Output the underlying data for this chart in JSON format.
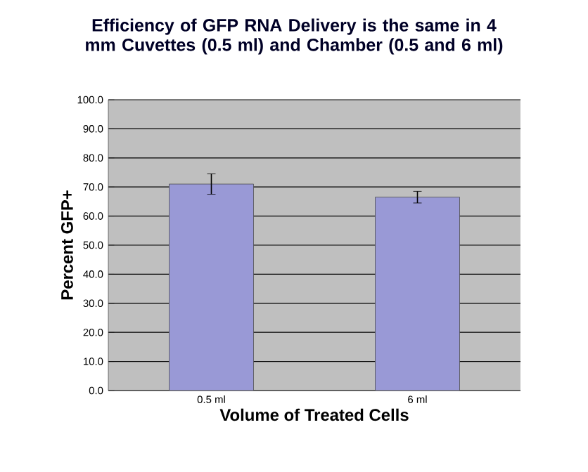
{
  "chart_data": {
    "type": "bar",
    "title": "Efficiency of GFP RNA Delivery is the same in 4 mm Cuvettes (0.5 ml) and Chamber (0.5 and 6 ml)",
    "xlabel": "Volume of Treated Cells",
    "ylabel": "Percent GFP+",
    "categories": [
      "0.5 ml",
      "6 ml"
    ],
    "values": [
      71.0,
      66.5
    ],
    "errors": [
      3.5,
      2.0
    ],
    "color": "#9999d6",
    "ylim": [
      0,
      100
    ],
    "yticks": [
      {
        "value": 0,
        "label": "0.0"
      },
      {
        "value": 10,
        "label": "10.0"
      },
      {
        "value": 20,
        "label": "20.0"
      },
      {
        "value": 30,
        "label": "30.0"
      },
      {
        "value": 40,
        "label": "40.0"
      },
      {
        "value": 50,
        "label": "50.0"
      },
      {
        "value": 60,
        "label": "60.0"
      },
      {
        "value": 70,
        "label": "70.0"
      },
      {
        "value": 80,
        "label": "80.0"
      },
      {
        "value": 90,
        "label": "90.0"
      },
      {
        "value": 100,
        "label": "100.0"
      }
    ],
    "grid": "y"
  }
}
